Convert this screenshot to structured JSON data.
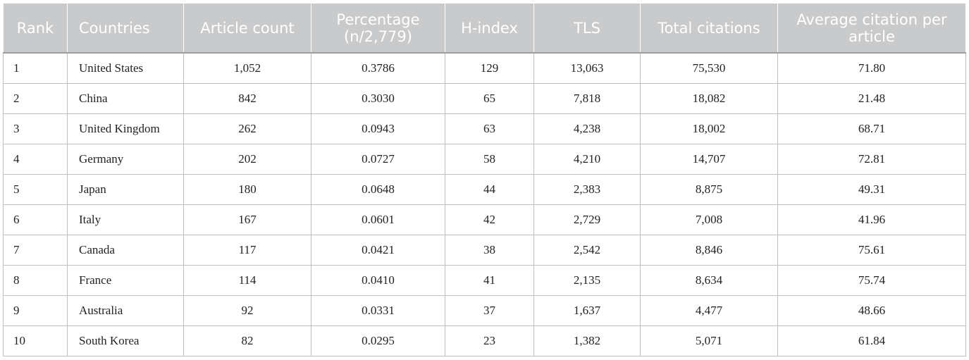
{
  "table": {
    "headers": [
      "Rank",
      "Countries",
      "Article count",
      "Percentage\n(n/2,779)",
      "H-index",
      "TLS",
      "Total citations",
      "Average citation per article"
    ],
    "rows": [
      [
        "1",
        "United States",
        "1,052",
        "0.3786",
        "129",
        "13,063",
        "75,530",
        "71.80"
      ],
      [
        "2",
        "China",
        "842",
        "0.3030",
        "65",
        "7,818",
        "18,082",
        "21.48"
      ],
      [
        "3",
        "United Kingdom",
        "262",
        "0.0943",
        "63",
        "4,238",
        "18,002",
        "68.71"
      ],
      [
        "4",
        "Germany",
        "202",
        "0.0727",
        "58",
        "4,210",
        "14,707",
        "72.81"
      ],
      [
        "5",
        "Japan",
        "180",
        "0.0648",
        "44",
        "2,383",
        "8,875",
        "49.31"
      ],
      [
        "6",
        "Italy",
        "167",
        "0.0601",
        "42",
        "2,729",
        "7,008",
        "41.96"
      ],
      [
        "7",
        "Canada",
        "117",
        "0.0421",
        "38",
        "2,542",
        "8,846",
        "75.61"
      ],
      [
        "8",
        "France",
        "114",
        "0.0410",
        "41",
        "2,135",
        "8,634",
        "75.74"
      ],
      [
        "9",
        "Australia",
        "92",
        "0.0331",
        "37",
        "1,637",
        "4,477",
        "48.66"
      ],
      [
        "10",
        "South Korea",
        "82",
        "0.0295",
        "23",
        "1,382",
        "5,071",
        "61.84"
      ]
    ]
  }
}
